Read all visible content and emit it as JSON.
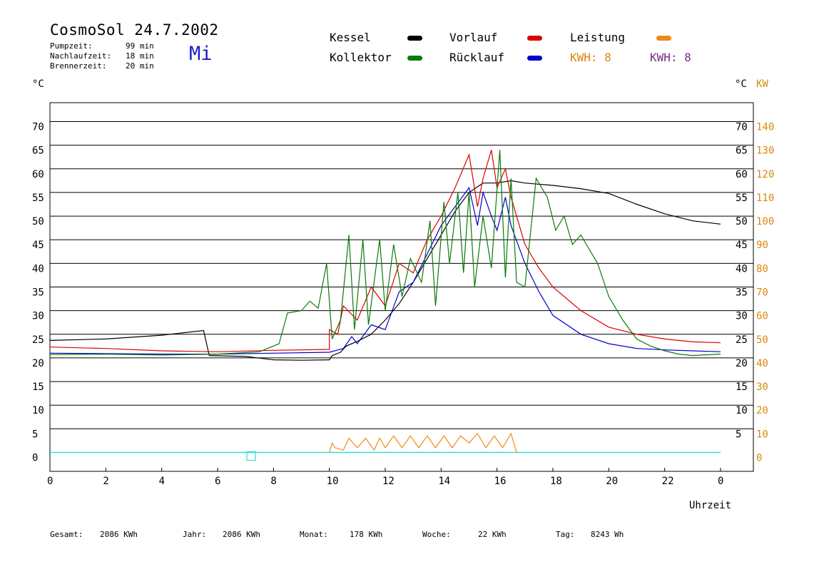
{
  "header": {
    "title": "CosmoSol 24.7.2002",
    "stats": [
      {
        "label": "Pumpzeit:",
        "value": "99 min"
      },
      {
        "label": "Nachlaufzeit:",
        "value": "18 min"
      },
      {
        "label": "Brennerzeit:",
        "value": "20 min"
      }
    ],
    "day": "Mi"
  },
  "legend": {
    "kessel": "Kessel",
    "kollektor": "Kollektor",
    "vorlauf": "Vorlauf",
    "ruecklauf": "Rücklauf",
    "leistung": "Leistung",
    "kwh_orange": "KWH: 8",
    "kwh_purple": "KWH: 8"
  },
  "axes": {
    "left_unit": "°C",
    "right_unit": "°C",
    "right_unit2": "KW",
    "xlabel": "Uhrzeit"
  },
  "footer": {
    "gesamt_label": "Gesamt:",
    "gesamt_value": "2086 KWh",
    "jahr_label": "Jahr:",
    "jahr_value": "2086 KWh",
    "monat_label": "Monat:",
    "monat_value": "178 KWh",
    "woche_label": "Woche:",
    "woche_value": "22 KWh",
    "tag_label": "Tag:",
    "tag_value": "8243 Wh"
  },
  "colors": {
    "kessel": "#000000",
    "kollektor": "#0a7a0a",
    "vorlauf": "#dd0000",
    "ruecklauf": "#0000cc",
    "leistung": "#f08a14",
    "purple": "#7a2a8a",
    "cyan": "#33dddd"
  },
  "chart_data": {
    "type": "line",
    "xlabel": "Uhrzeit",
    "xlim": [
      0,
      24
    ],
    "ylim": [
      -4,
      74
    ],
    "xticks": [
      "0",
      "2",
      "4",
      "6",
      "8",
      "10",
      "12",
      "14",
      "16",
      "18",
      "20",
      "22",
      "0"
    ],
    "yticks_left": [
      "0",
      "5",
      "10",
      "15",
      "20",
      "25",
      "30",
      "35",
      "40",
      "45",
      "50",
      "55",
      "60",
      "65",
      "70"
    ],
    "yticks_right": [
      "5",
      "10",
      "15",
      "20",
      "25",
      "30",
      "35",
      "40",
      "45",
      "50",
      "55",
      "60",
      "65",
      "70"
    ],
    "yticks_kw": [
      "0",
      "10",
      "20",
      "30",
      "40",
      "50",
      "60",
      "70",
      "80",
      "90",
      "100",
      "110",
      "120",
      "130",
      "140"
    ],
    "series": [
      {
        "name": "Kessel",
        "color": "#000000",
        "points": [
          [
            0,
            23.7
          ],
          [
            2,
            24
          ],
          [
            4,
            24.8
          ],
          [
            5.5,
            25.8
          ],
          [
            5.7,
            20.5
          ],
          [
            7,
            20.3
          ],
          [
            8,
            19.6
          ],
          [
            9,
            19.5
          ],
          [
            10,
            19.6
          ],
          [
            10.1,
            20.5
          ],
          [
            10.4,
            21.2
          ],
          [
            10.6,
            22.5
          ],
          [
            11,
            23.5
          ],
          [
            11.5,
            25
          ],
          [
            12,
            28
          ],
          [
            12.5,
            31.5
          ],
          [
            13,
            36
          ],
          [
            13.5,
            41
          ],
          [
            14,
            46
          ],
          [
            14.5,
            51
          ],
          [
            15,
            55
          ],
          [
            15.5,
            57
          ],
          [
            16,
            57
          ],
          [
            16.5,
            57.5
          ],
          [
            17,
            57
          ],
          [
            18,
            56.5
          ],
          [
            19,
            55.8
          ],
          [
            20,
            54.8
          ],
          [
            21,
            52.5
          ],
          [
            22,
            50.5
          ],
          [
            23,
            49
          ],
          [
            24,
            48.3
          ]
        ]
      },
      {
        "name": "Vorlauf",
        "color": "#dd0000",
        "points": [
          [
            0,
            22.3
          ],
          [
            2,
            22
          ],
          [
            4,
            21.5
          ],
          [
            6,
            21.3
          ],
          [
            8,
            21.6
          ],
          [
            10,
            21.8
          ],
          [
            10,
            26
          ],
          [
            10.3,
            25
          ],
          [
            10.5,
            31
          ],
          [
            11,
            28
          ],
          [
            11.5,
            35
          ],
          [
            12,
            31
          ],
          [
            12.5,
            40
          ],
          [
            13,
            38
          ],
          [
            13.5,
            45
          ],
          [
            14,
            50
          ],
          [
            14.5,
            56
          ],
          [
            15,
            63
          ],
          [
            15.3,
            52
          ],
          [
            15.5,
            58
          ],
          [
            15.8,
            64
          ],
          [
            16,
            56
          ],
          [
            16.3,
            60
          ],
          [
            16.5,
            54
          ],
          [
            17,
            44
          ],
          [
            17.5,
            39
          ],
          [
            18,
            35
          ],
          [
            19,
            30
          ],
          [
            20,
            26.5
          ],
          [
            21,
            25
          ],
          [
            22,
            24
          ],
          [
            23,
            23.4
          ],
          [
            24,
            23.2
          ]
        ]
      },
      {
        "name": "Rücklauf",
        "color": "#0000cc",
        "points": [
          [
            0,
            21
          ],
          [
            4,
            20.8
          ],
          [
            6,
            20.8
          ],
          [
            8,
            21
          ],
          [
            10,
            21.2
          ],
          [
            10.5,
            22
          ],
          [
            10.8,
            24.5
          ],
          [
            11,
            23
          ],
          [
            11.5,
            27
          ],
          [
            12,
            26
          ],
          [
            12.5,
            34
          ],
          [
            13,
            36
          ],
          [
            13.5,
            42
          ],
          [
            14,
            48
          ],
          [
            14.5,
            52
          ],
          [
            15,
            56
          ],
          [
            15.3,
            48
          ],
          [
            15.5,
            55
          ],
          [
            15.8,
            50
          ],
          [
            16,
            47
          ],
          [
            16.3,
            54
          ],
          [
            16.5,
            48
          ],
          [
            17,
            40
          ],
          [
            17.5,
            34
          ],
          [
            18,
            29
          ],
          [
            19,
            25
          ],
          [
            20,
            23
          ],
          [
            21,
            22
          ],
          [
            22,
            21.7
          ],
          [
            23,
            21.5
          ],
          [
            24,
            21.3
          ]
        ]
      },
      {
        "name": "Kollektor",
        "color": "#0a7a0a",
        "points": [
          [
            0,
            20.7
          ],
          [
            2,
            20.8
          ],
          [
            4,
            20.6
          ],
          [
            6,
            20.8
          ],
          [
            7.5,
            21.3
          ],
          [
            8.2,
            23
          ],
          [
            8.5,
            29.5
          ],
          [
            9,
            30
          ],
          [
            9.3,
            32
          ],
          [
            9.6,
            30.5
          ],
          [
            9.9,
            40
          ],
          [
            10.1,
            24
          ],
          [
            10.4,
            28
          ],
          [
            10.7,
            46
          ],
          [
            10.9,
            26
          ],
          [
            11.2,
            45
          ],
          [
            11.4,
            27
          ],
          [
            11.8,
            45
          ],
          [
            12,
            30
          ],
          [
            12.3,
            44
          ],
          [
            12.6,
            33
          ],
          [
            12.9,
            41
          ],
          [
            13.3,
            36
          ],
          [
            13.6,
            49
          ],
          [
            13.8,
            31
          ],
          [
            14.1,
            53
          ],
          [
            14.3,
            40
          ],
          [
            14.6,
            55
          ],
          [
            14.8,
            38
          ],
          [
            15,
            55
          ],
          [
            15.2,
            35
          ],
          [
            15.5,
            50
          ],
          [
            15.8,
            39
          ],
          [
            16.1,
            64
          ],
          [
            16.3,
            37
          ],
          [
            16.5,
            58
          ],
          [
            16.7,
            36
          ],
          [
            17,
            35
          ],
          [
            17.4,
            58
          ],
          [
            17.8,
            54
          ],
          [
            18.1,
            47
          ],
          [
            18.4,
            50
          ],
          [
            18.7,
            44
          ],
          [
            19,
            46
          ],
          [
            19.3,
            43
          ],
          [
            19.6,
            40
          ],
          [
            20,
            33
          ],
          [
            20.5,
            28
          ],
          [
            21,
            24
          ],
          [
            21.5,
            22.5
          ],
          [
            22,
            21.5
          ],
          [
            22.5,
            20.8
          ],
          [
            23,
            20.5
          ],
          [
            24,
            20.8
          ]
        ]
      },
      {
        "name": "Leistung",
        "color": "#f08a14",
        "points": [
          [
            10,
            0
          ],
          [
            10.1,
            2
          ],
          [
            10.2,
            1
          ],
          [
            10.5,
            0.5
          ],
          [
            10.7,
            3
          ],
          [
            11,
            1
          ],
          [
            11.3,
            3
          ],
          [
            11.6,
            0.5
          ],
          [
            11.8,
            3
          ],
          [
            12,
            1
          ],
          [
            12.3,
            3.5
          ],
          [
            12.6,
            1
          ],
          [
            12.9,
            3.5
          ],
          [
            13.2,
            1
          ],
          [
            13.5,
            3.5
          ],
          [
            13.8,
            1
          ],
          [
            14.1,
            3.5
          ],
          [
            14.4,
            1
          ],
          [
            14.7,
            3.5
          ],
          [
            15,
            2
          ],
          [
            15.3,
            4
          ],
          [
            15.6,
            1
          ],
          [
            15.9,
            3.5
          ],
          [
            16.2,
            1
          ],
          [
            16.5,
            4
          ],
          [
            16.7,
            0
          ]
        ]
      }
    ]
  }
}
